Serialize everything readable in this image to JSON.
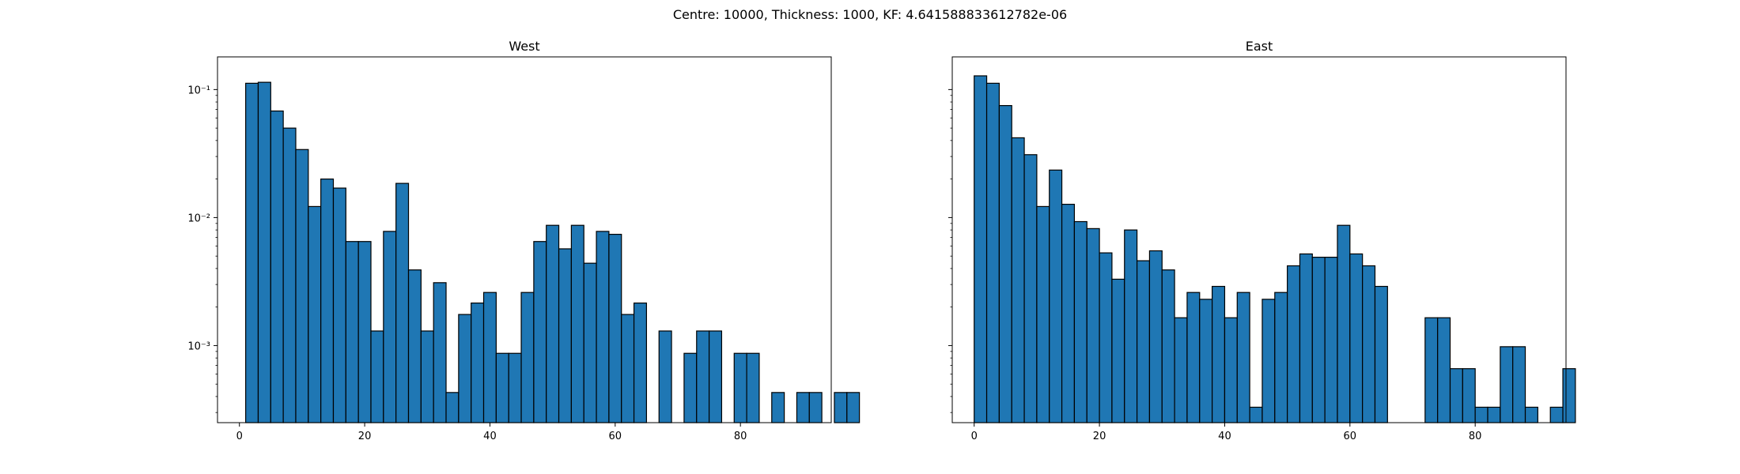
{
  "suptitle": "Centre: 10000, Thickness: 1000, KF: 4.641588833612782e-06",
  "style": {
    "bar_color": "#1f77b4",
    "edge_color": "#000000"
  },
  "chart_data": [
    {
      "type": "bar",
      "title": "West",
      "xlabel": "",
      "ylabel": "",
      "yscale": "log",
      "xlim": [
        -3.5,
        94.5
      ],
      "ylim": [
        0.00025,
        0.18
      ],
      "xticks": [
        0,
        20,
        40,
        60,
        80
      ],
      "yticks": [
        0.001,
        0.01,
        0.1
      ],
      "ytick_labels": [
        "10⁻³",
        "10⁻²",
        "10⁻¹"
      ],
      "bin_width": 2,
      "bin_start": 1,
      "values": [
        0.112,
        0.114,
        0.068,
        0.05,
        0.034,
        0.0122,
        0.02,
        0.017,
        0.0065,
        0.0065,
        0.0013,
        0.0078,
        0.0185,
        0.0039,
        0.0013,
        0.0031,
        0.00043,
        0.00175,
        0.00215,
        0.0026,
        0.00087,
        0.00087,
        0.0026,
        0.0065,
        0.0087,
        0.0057,
        0.0087,
        0.0044,
        0.0078,
        0.0074,
        0.00175,
        0.00215,
        0,
        0.0013,
        0,
        0.00087,
        0.0013,
        0.0013,
        0,
        0.00087,
        0.00087,
        0,
        0.00043,
        0,
        0.00043,
        0.00043,
        0,
        0.00043,
        0.00043
      ]
    },
    {
      "type": "bar",
      "title": "East",
      "xlabel": "",
      "ylabel": "",
      "yscale": "log",
      "xlim": [
        -3.5,
        94.5
      ],
      "ylim": [
        0.00025,
        0.18
      ],
      "xticks": [
        0,
        20,
        40,
        60,
        80
      ],
      "yticks": [
        0.001,
        0.01,
        0.1
      ],
      "ytick_labels": [],
      "bin_width": 2,
      "bin_start": 0,
      "values": [
        0.128,
        0.112,
        0.075,
        0.042,
        0.031,
        0.0122,
        0.0235,
        0.0127,
        0.0093,
        0.0082,
        0.0053,
        0.0033,
        0.008,
        0.0046,
        0.0055,
        0.0039,
        0.00165,
        0.0026,
        0.0023,
        0.0029,
        0.00165,
        0.0026,
        0.00033,
        0.0023,
        0.0026,
        0.0042,
        0.0052,
        0.0049,
        0.0049,
        0.0087,
        0.0052,
        0.0042,
        0.0029,
        0,
        0,
        0,
        0.00165,
        0.00165,
        0.00066,
        0.00066,
        0.00033,
        0.00033,
        0.00098,
        0.00098,
        0.00033,
        0,
        0.00033,
        0.00066
      ]
    }
  ]
}
